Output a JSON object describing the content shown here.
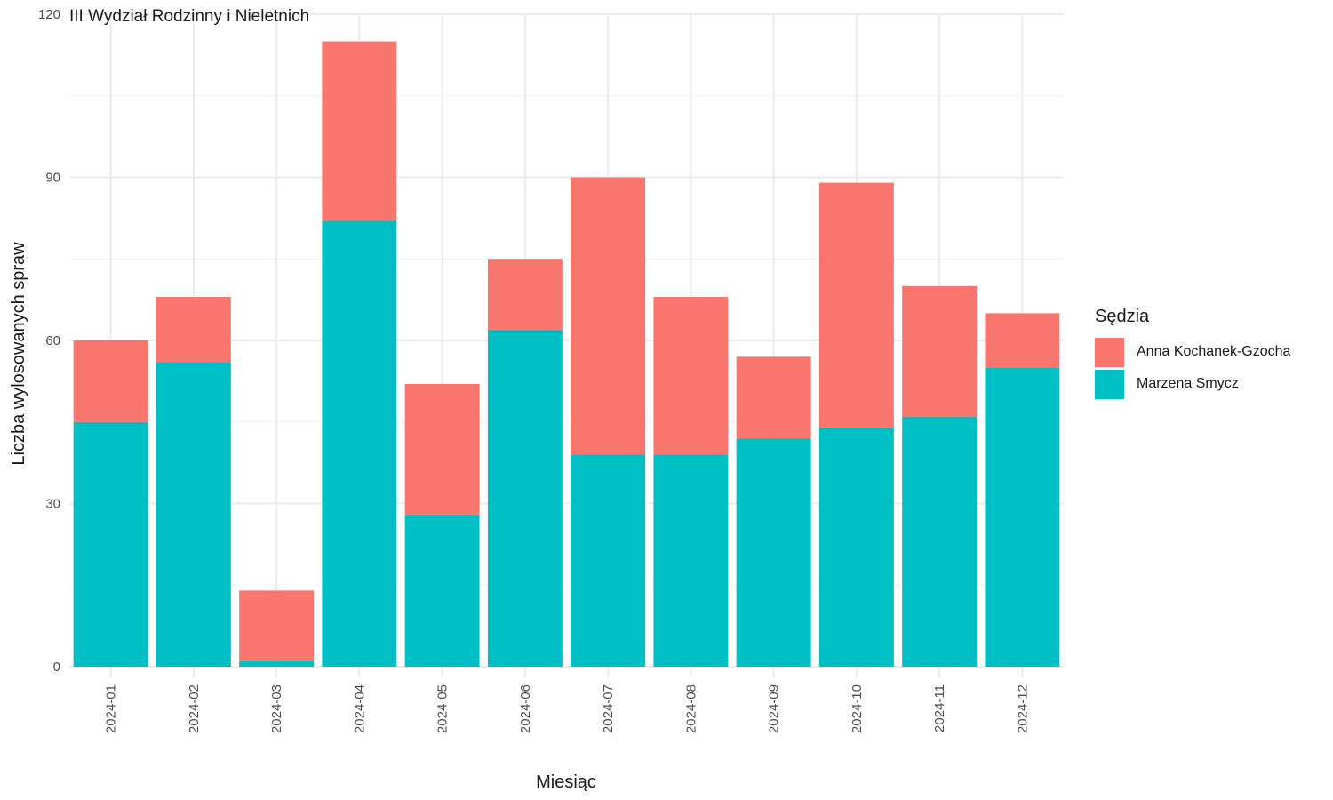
{
  "chart_data": {
    "type": "bar",
    "stacked": true,
    "title": "III Wydział Rodzinny i Nieletnich",
    "xlabel": "Miesiąc",
    "ylabel": "Liczba wylosowanych spraw",
    "ylim": [
      0,
      120
    ],
    "yticks": [
      0,
      30,
      60,
      90,
      120
    ],
    "grid": true,
    "legend_title": "Sędzia",
    "legend_position": "right",
    "categories": [
      "2024-01",
      "2024-02",
      "2024-03",
      "2024-04",
      "2024-05",
      "2024-06",
      "2024-07",
      "2024-08",
      "2024-09",
      "2024-10",
      "2024-11",
      "2024-12"
    ],
    "series": [
      {
        "name": "Marzena Smycz",
        "color": "#00BFC4",
        "values": [
          45,
          56,
          1,
          82,
          28,
          62,
          39,
          39,
          42,
          44,
          46,
          55
        ]
      },
      {
        "name": "Anna Kochanek-Gzocha",
        "color": "#F8766D",
        "values": [
          15,
          12,
          13,
          33,
          24,
          13,
          51,
          29,
          15,
          45,
          24,
          10
        ]
      }
    ]
  }
}
